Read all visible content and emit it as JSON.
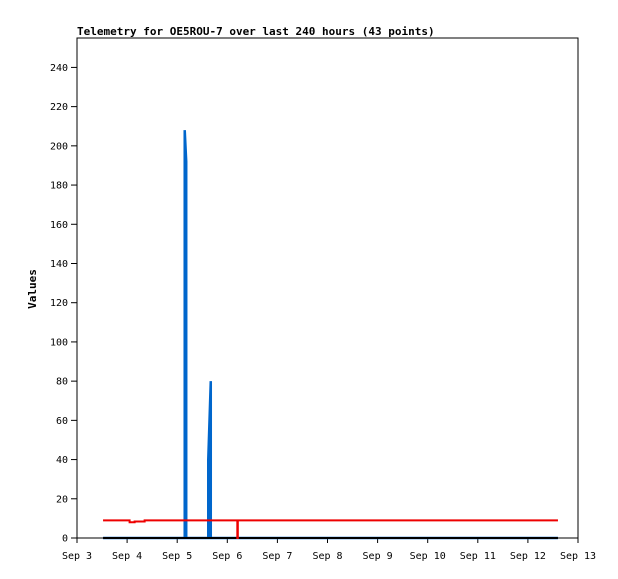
{
  "chart_data": {
    "type": "line",
    "title": "Telemetry for OE5ROU-7 over last 240 hours (43 points)",
    "xlabel": "",
    "ylabel": "Values",
    "xlim": [
      "Sep 3",
      "Sep 13"
    ],
    "ylim": [
      0,
      255
    ],
    "xticks": [
      "Sep 3",
      "Sep 4",
      "Sep 5",
      "Sep 6",
      "Sep 7",
      "Sep 8",
      "Sep 9",
      "Sep 10",
      "Sep 11",
      "Sep 12",
      "Sep 13"
    ],
    "yticks": [
      0,
      20,
      40,
      60,
      80,
      100,
      120,
      140,
      160,
      180,
      200,
      220,
      240
    ],
    "grid": false,
    "legend": "none",
    "series": [
      {
        "color": "#0066cc",
        "points": [
          [
            "Sep 3",
            0
          ],
          [
            "Sep 5",
            0
          ],
          [
            "Sep 5",
            208
          ],
          [
            "Sep 5",
            192
          ],
          [
            "Sep 5",
            0
          ],
          [
            "Sep 5",
            0
          ],
          [
            "Sep 5",
            40
          ],
          [
            "Sep 5",
            80
          ],
          [
            "Sep 5",
            0
          ],
          [
            "Sep 12",
            0
          ]
        ],
        "x_days": [
          3.52,
          5.15,
          5.15,
          5.18,
          5.18,
          5.62,
          5.62,
          5.67,
          5.67,
          12.6
        ]
      },
      {
        "color": "#000000",
        "x_days": [
          3.52,
          12.6
        ],
        "values": [
          0,
          0
        ]
      },
      {
        "color": "#ee0000",
        "x_days": [
          3.52,
          4.0,
          4.05,
          4.05,
          4.15,
          4.15,
          4.35,
          4.35,
          6.2,
          6.2,
          6.21,
          6.21,
          12.6
        ],
        "values": [
          9,
          9,
          9,
          8,
          8,
          8.4,
          8.4,
          9,
          9,
          0,
          0,
          9,
          9
        ]
      }
    ]
  }
}
